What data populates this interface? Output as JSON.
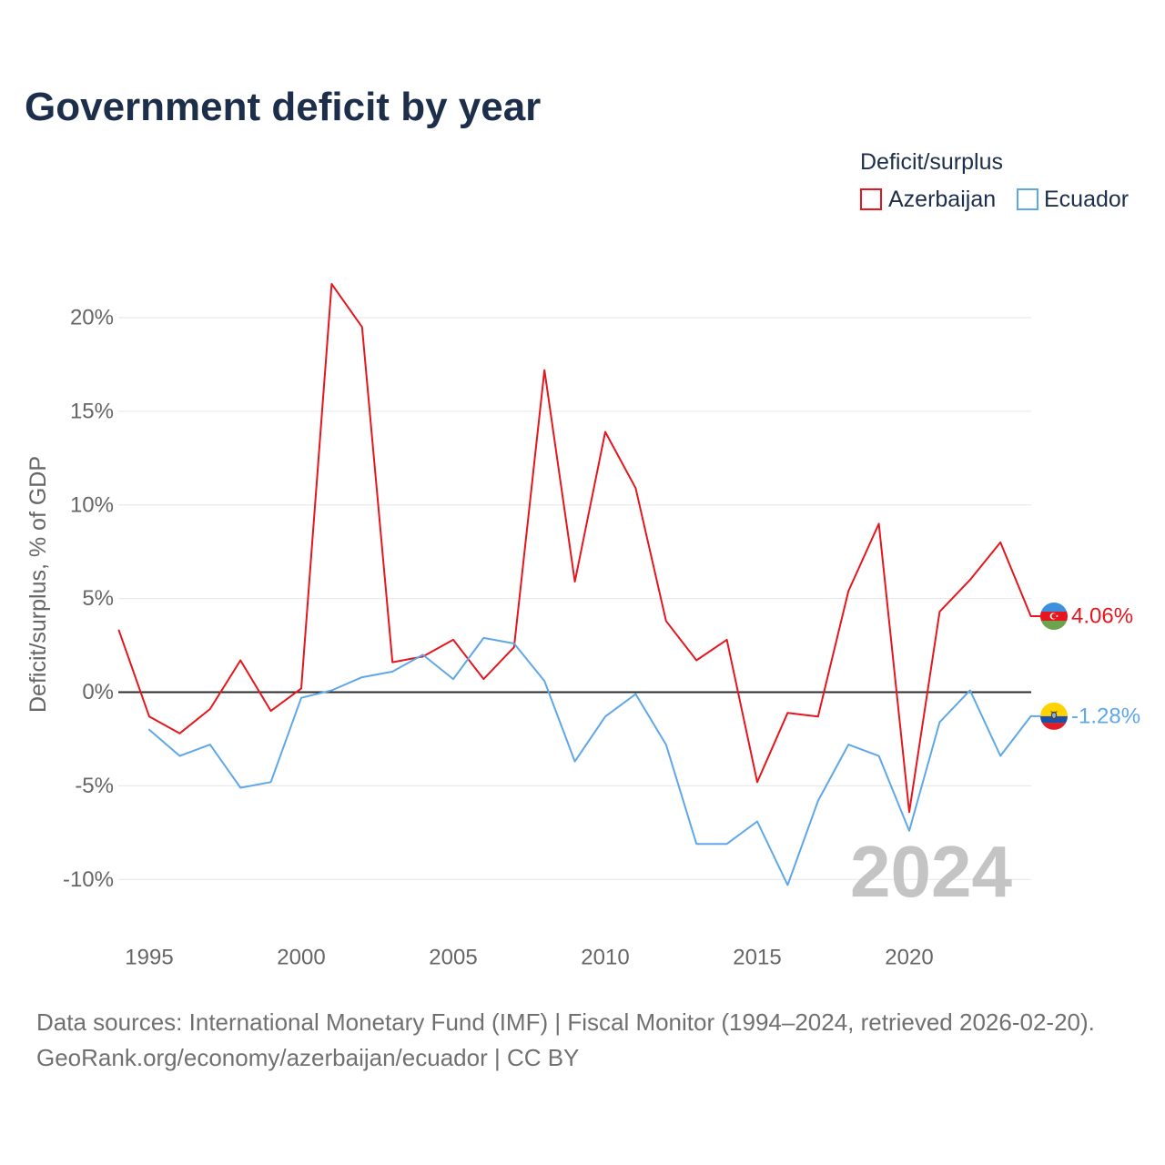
{
  "chart_data": {
    "type": "line",
    "title": "Government deficit by year",
    "ylabel": "Deficit/surplus, % of GDP",
    "legend_title": "Deficit/surplus",
    "year_watermark": "2024",
    "xlim": [
      1994,
      2024
    ],
    "ylim": [
      -12.5,
      22.5
    ],
    "grid": true,
    "x_ticks": [
      1995,
      2000,
      2005,
      2010,
      2015,
      2020
    ],
    "x_tick_labels": [
      "1995",
      "2000",
      "2005",
      "2010",
      "2015",
      "2020"
    ],
    "y_ticks": [
      20,
      15,
      10,
      5,
      0,
      -5,
      -10
    ],
    "y_tick_labels": [
      "20%",
      "15%",
      "10%",
      "5%",
      "0%",
      "-5%",
      "-10%"
    ],
    "series": [
      {
        "name": "Azerbaijan",
        "color": "#e5161d",
        "icon": "azerbaijan-flag-icon",
        "x": [
          1994,
          1995,
          1996,
          1997,
          1998,
          1999,
          2000,
          2001,
          2002,
          2003,
          2004,
          2005,
          2006,
          2007,
          2008,
          2009,
          2010,
          2011,
          2012,
          2013,
          2014,
          2015,
          2016,
          2017,
          2018,
          2019,
          2020,
          2021,
          2022,
          2023,
          2024
        ],
        "values": [
          3.3,
          -1.3,
          -2.2,
          -0.9,
          1.7,
          -1.0,
          0.2,
          21.8,
          19.5,
          1.6,
          1.9,
          2.8,
          0.7,
          2.4,
          17.2,
          5.9,
          13.9,
          10.9,
          3.8,
          1.7,
          2.8,
          -4.8,
          -1.1,
          -1.3,
          5.4,
          9.0,
          -6.4,
          4.3,
          6.0,
          8.0,
          4.06
        ],
        "end_label": "4.06%"
      },
      {
        "name": "Ecuador",
        "color": "#5ea7e8",
        "icon": "ecuador-flag-icon",
        "x": [
          1995,
          1996,
          1997,
          1998,
          1999,
          2000,
          2001,
          2002,
          2003,
          2004,
          2005,
          2006,
          2007,
          2008,
          2009,
          2010,
          2011,
          2012,
          2013,
          2014,
          2015,
          2016,
          2017,
          2018,
          2019,
          2020,
          2021,
          2022,
          2023,
          2024
        ],
        "values": [
          -2.0,
          -3.4,
          -2.8,
          -5.1,
          -4.8,
          -0.3,
          0.1,
          0.8,
          1.1,
          2.0,
          0.7,
          2.9,
          2.6,
          0.6,
          -3.7,
          -1.3,
          -0.1,
          -2.8,
          -8.1,
          -8.1,
          -6.9,
          -10.3,
          -5.8,
          -2.8,
          -3.4,
          -7.4,
          -1.6,
          0.1,
          -3.4,
          -1.28
        ],
        "end_label": "-1.28%"
      }
    ]
  },
  "footer": {
    "source": "Data sources: International Monetary Fund (IMF) | Fiscal Monitor (1994–2024, retrieved 2026-02-20).",
    "credit": "GeoRank.org/economy/azerbaijan/ecuador | CC BY"
  }
}
